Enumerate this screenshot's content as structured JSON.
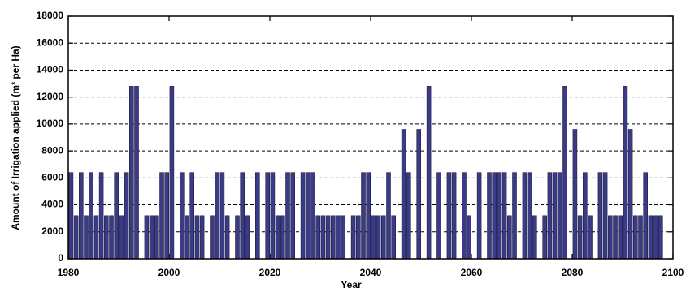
{
  "chart_data": {
    "type": "bar",
    "xlabel": "Year",
    "ylabel": "Amount of Irrigation applied (m³ per Ha)",
    "color": "#3b3b85",
    "grid": true,
    "xlim": [
      1980,
      2100
    ],
    "xticks": [
      1980,
      2000,
      2020,
      2040,
      2060,
      2080,
      2100
    ],
    "ylim": [
      0,
      18000
    ],
    "yticks": [
      0,
      2000,
      4000,
      6000,
      8000,
      10000,
      12000,
      14000,
      16000,
      18000
    ],
    "x": [
      1980,
      1981,
      1982,
      1983,
      1984,
      1985,
      1986,
      1987,
      1988,
      1989,
      1990,
      1991,
      1992,
      1993,
      1994,
      1995,
      1996,
      1997,
      1998,
      1999,
      2000,
      2001,
      2002,
      2003,
      2004,
      2005,
      2006,
      2007,
      2008,
      2009,
      2010,
      2011,
      2012,
      2013,
      2014,
      2015,
      2016,
      2017,
      2018,
      2019,
      2020,
      2021,
      2022,
      2023,
      2024,
      2025,
      2026,
      2027,
      2028,
      2029,
      2030,
      2031,
      2032,
      2033,
      2034,
      2035,
      2036,
      2037,
      2038,
      2039,
      2040,
      2041,
      2042,
      2043,
      2044,
      2045,
      2046,
      2047,
      2048,
      2049,
      2050,
      2051,
      2052,
      2053,
      2054,
      2055,
      2056,
      2057,
      2058,
      2059,
      2060,
      2061,
      2062,
      2063,
      2064,
      2065,
      2066,
      2067,
      2068,
      2069,
      2070,
      2071,
      2072,
      2073,
      2074,
      2075,
      2076,
      2077,
      2078,
      2079,
      2080,
      2081,
      2082,
      2083,
      2084,
      2085,
      2086,
      2087,
      2088,
      2089,
      2090,
      2091,
      2092,
      2093,
      2094,
      2095,
      2096,
      2097
    ],
    "values": [
      6400,
      3200,
      6400,
      3200,
      6400,
      3200,
      6400,
      3200,
      3200,
      6400,
      3200,
      6400,
      12800,
      12800,
      0,
      3200,
      3200,
      3200,
      6400,
      6400,
      12800,
      0,
      6400,
      3200,
      6400,
      3200,
      3200,
      0,
      3200,
      6400,
      6400,
      3200,
      0,
      3200,
      6400,
      3200,
      0,
      6400,
      0,
      6400,
      6400,
      3200,
      3200,
      6400,
      6400,
      0,
      6400,
      6400,
      6400,
      3200,
      3200,
      3200,
      3200,
      3200,
      3200,
      0,
      3200,
      3200,
      6400,
      6400,
      3200,
      3200,
      3200,
      6400,
      3200,
      0,
      9600,
      6400,
      0,
      9600,
      0,
      12800,
      0,
      6400,
      0,
      6400,
      6400,
      0,
      6400,
      3200,
      0,
      6400,
      0,
      6400,
      6400,
      6400,
      6400,
      3200,
      6400,
      0,
      6400,
      6400,
      3200,
      0,
      3200,
      6400,
      6400,
      6400,
      12800,
      0,
      9600,
      3200,
      6400,
      3200,
      0,
      6400,
      6400,
      3200,
      3200,
      3200,
      12800,
      9600,
      3200,
      3200,
      6400,
      3200,
      3200,
      3200
    ]
  }
}
